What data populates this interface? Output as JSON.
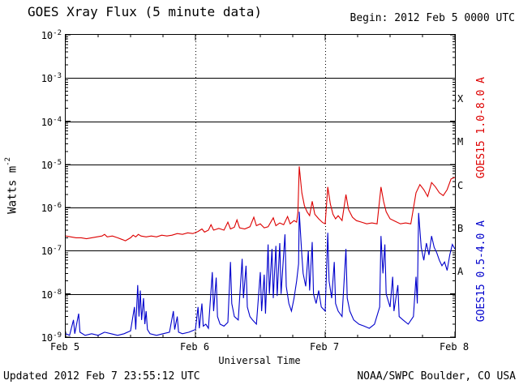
{
  "title": "GOES Xray Flux (5 minute data)",
  "begin_label": "Begin: 2012 Feb 5 0000 UTC",
  "footer": {
    "updated": "Updated 2012 Feb 7 23:55:12 UTC",
    "source": "NOAA/SWPC Boulder, CO USA"
  },
  "axes": {
    "ylabel_base": "Watts m",
    "ylabel_sup": "-2",
    "xlabel": "Universal Time",
    "x_tick_labels": [
      "Feb 5",
      "Feb 6",
      "Feb 7",
      "Feb 8"
    ],
    "y_tick_exponents": [
      -2,
      -3,
      -4,
      -5,
      -6,
      -7,
      -8,
      -9
    ],
    "flare_classes": [
      "X",
      "M",
      "C",
      "B",
      "A"
    ]
  },
  "right_labels": {
    "long": "GOES15 1.0-8.0 A",
    "short": "GOES15 0.5-4.0 A"
  },
  "colors": {
    "long": "#dd0000",
    "short": "#0000cc",
    "grid": "#000000",
    "background": "#ffffff"
  },
  "chart_data": {
    "type": "line",
    "title": "GOES Xray Flux (5 minute data)",
    "xlabel": "Universal Time",
    "ylabel": "Watts m^-2",
    "x_units": "days from 2012 Feb 5 0000 UTC",
    "xlim": [
      0,
      3
    ],
    "ylim_log10": [
      -9,
      -2
    ],
    "grid": "horizontal solid per decade, vertical dotted per day",
    "legend_position": "right-rotated",
    "series": [
      {
        "name": "GOES15 1.0-8.0 A",
        "color": "#dd0000",
        "points": [
          [
            0.0,
            2.2e-07
          ],
          [
            0.04,
            2.1e-07
          ],
          [
            0.08,
            2e-07
          ],
          [
            0.12,
            2e-07
          ],
          [
            0.16,
            1.9e-07
          ],
          [
            0.2,
            2e-07
          ],
          [
            0.24,
            2.1e-07
          ],
          [
            0.28,
            2.2e-07
          ],
          [
            0.3,
            2.4e-07
          ],
          [
            0.32,
            2.1e-07
          ],
          [
            0.36,
            2.2e-07
          ],
          [
            0.4,
            2e-07
          ],
          [
            0.44,
            1.8e-07
          ],
          [
            0.46,
            1.7e-07
          ],
          [
            0.5,
            2e-07
          ],
          [
            0.52,
            2.3e-07
          ],
          [
            0.54,
            2.1e-07
          ],
          [
            0.56,
            2.4e-07
          ],
          [
            0.58,
            2.2e-07
          ],
          [
            0.62,
            2.1e-07
          ],
          [
            0.66,
            2.2e-07
          ],
          [
            0.7,
            2.1e-07
          ],
          [
            0.74,
            2.3e-07
          ],
          [
            0.78,
            2.2e-07
          ],
          [
            0.82,
            2.3e-07
          ],
          [
            0.86,
            2.5e-07
          ],
          [
            0.9,
            2.4e-07
          ],
          [
            0.94,
            2.6e-07
          ],
          [
            0.98,
            2.5e-07
          ],
          [
            1.02,
            2.8e-07
          ],
          [
            1.05,
            3.2e-07
          ],
          [
            1.07,
            2.7e-07
          ],
          [
            1.1,
            3e-07
          ],
          [
            1.12,
            4e-07
          ],
          [
            1.14,
            3e-07
          ],
          [
            1.18,
            3.3e-07
          ],
          [
            1.22,
            3e-07
          ],
          [
            1.25,
            4.6e-07
          ],
          [
            1.27,
            3.2e-07
          ],
          [
            1.3,
            3.5e-07
          ],
          [
            1.32,
            5.2e-07
          ],
          [
            1.34,
            3.4e-07
          ],
          [
            1.38,
            3.2e-07
          ],
          [
            1.42,
            3.6e-07
          ],
          [
            1.45,
            6e-07
          ],
          [
            1.47,
            3.8e-07
          ],
          [
            1.5,
            4.2e-07
          ],
          [
            1.53,
            3.4e-07
          ],
          [
            1.56,
            3.6e-07
          ],
          [
            1.6,
            5.8e-07
          ],
          [
            1.62,
            3.8e-07
          ],
          [
            1.65,
            4.4e-07
          ],
          [
            1.68,
            4e-07
          ],
          [
            1.71,
            6.2e-07
          ],
          [
            1.73,
            4.2e-07
          ],
          [
            1.76,
            5e-07
          ],
          [
            1.78,
            4.6e-07
          ],
          [
            1.79,
            8e-07
          ],
          [
            1.8,
            9e-06
          ],
          [
            1.82,
            2.2e-06
          ],
          [
            1.84,
            1.1e-06
          ],
          [
            1.86,
            8e-07
          ],
          [
            1.88,
            6.5e-07
          ],
          [
            1.9,
            1.4e-06
          ],
          [
            1.92,
            7e-07
          ],
          [
            1.95,
            5.5e-07
          ],
          [
            1.98,
            4.5e-07
          ],
          [
            2.0,
            4.2e-07
          ],
          [
            2.02,
            3e-06
          ],
          [
            2.04,
            1.2e-06
          ],
          [
            2.06,
            7e-07
          ],
          [
            2.08,
            5.5e-07
          ],
          [
            2.1,
            6.5e-07
          ],
          [
            2.13,
            5e-07
          ],
          [
            2.16,
            2e-06
          ],
          [
            2.18,
            9e-07
          ],
          [
            2.21,
            6e-07
          ],
          [
            2.24,
            5e-07
          ],
          [
            2.28,
            4.6e-07
          ],
          [
            2.32,
            4.2e-07
          ],
          [
            2.36,
            4.4e-07
          ],
          [
            2.4,
            4.2e-07
          ],
          [
            2.43,
            3e-06
          ],
          [
            2.45,
            1.4e-06
          ],
          [
            2.47,
            8e-07
          ],
          [
            2.5,
            5.5e-07
          ],
          [
            2.54,
            4.8e-07
          ],
          [
            2.58,
            4.2e-07
          ],
          [
            2.62,
            4.4e-07
          ],
          [
            2.66,
            4.2e-07
          ],
          [
            2.7,
            2.2e-06
          ],
          [
            2.73,
            3.4e-06
          ],
          [
            2.76,
            2.6e-06
          ],
          [
            2.79,
            1.8e-06
          ],
          [
            2.82,
            3.8e-06
          ],
          [
            2.85,
            3e-06
          ],
          [
            2.88,
            2.2e-06
          ],
          [
            2.91,
            1.9e-06
          ],
          [
            2.94,
            2.6e-06
          ],
          [
            2.97,
            4.6e-06
          ],
          [
            3.0,
            5e-06
          ]
        ]
      },
      {
        "name": "GOES15 0.5-4.0 A",
        "color": "#0000cc",
        "points": [
          [
            0.0,
            1.2e-09
          ],
          [
            0.03,
            1.1e-09
          ],
          [
            0.06,
            2.5e-09
          ],
          [
            0.07,
            1.2e-09
          ],
          [
            0.1,
            3.5e-09
          ],
          [
            0.11,
            1.3e-09
          ],
          [
            0.15,
            1.1e-09
          ],
          [
            0.2,
            1.2e-09
          ],
          [
            0.25,
            1.1e-09
          ],
          [
            0.3,
            1.3e-09
          ],
          [
            0.35,
            1.2e-09
          ],
          [
            0.4,
            1.1e-09
          ],
          [
            0.45,
            1.2e-09
          ],
          [
            0.5,
            1.4e-09
          ],
          [
            0.53,
            5e-09
          ],
          [
            0.54,
            1.5e-09
          ],
          [
            0.555,
            1.6e-08
          ],
          [
            0.565,
            3e-09
          ],
          [
            0.575,
            1.2e-08
          ],
          [
            0.585,
            2.5e-09
          ],
          [
            0.6,
            8e-09
          ],
          [
            0.61,
            2e-09
          ],
          [
            0.62,
            4e-09
          ],
          [
            0.63,
            1.5e-09
          ],
          [
            0.65,
            1.2e-09
          ],
          [
            0.7,
            1.1e-09
          ],
          [
            0.75,
            1.2e-09
          ],
          [
            0.8,
            1.3e-09
          ],
          [
            0.83,
            4e-09
          ],
          [
            0.84,
            1.5e-09
          ],
          [
            0.86,
            3e-09
          ],
          [
            0.87,
            1.3e-09
          ],
          [
            0.9,
            1.2e-09
          ],
          [
            0.95,
            1.3e-09
          ],
          [
            1.0,
            1.5e-09
          ],
          [
            1.02,
            5e-09
          ],
          [
            1.03,
            1.6e-09
          ],
          [
            1.05,
            6e-09
          ],
          [
            1.06,
            1.8e-09
          ],
          [
            1.08,
            2e-09
          ],
          [
            1.1,
            1.6e-09
          ],
          [
            1.13,
            3.2e-08
          ],
          [
            1.14,
            4e-09
          ],
          [
            1.16,
            2.4e-08
          ],
          [
            1.17,
            3e-09
          ],
          [
            1.19,
            2e-09
          ],
          [
            1.22,
            1.8e-09
          ],
          [
            1.25,
            2.2e-09
          ],
          [
            1.27,
            5.5e-08
          ],
          [
            1.28,
            6e-09
          ],
          [
            1.3,
            3e-09
          ],
          [
            1.33,
            2.5e-09
          ],
          [
            1.36,
            6.5e-08
          ],
          [
            1.37,
            8e-09
          ],
          [
            1.39,
            4.5e-08
          ],
          [
            1.4,
            5e-09
          ],
          [
            1.42,
            3e-09
          ],
          [
            1.44,
            2.5e-09
          ],
          [
            1.47,
            2e-09
          ],
          [
            1.5,
            3.2e-08
          ],
          [
            1.51,
            4e-09
          ],
          [
            1.53,
            2.8e-08
          ],
          [
            1.54,
            3.5e-09
          ],
          [
            1.56,
            1.4e-07
          ],
          [
            1.57,
            1e-08
          ],
          [
            1.59,
            1.1e-07
          ],
          [
            1.6,
            8e-09
          ],
          [
            1.62,
            1.3e-07
          ],
          [
            1.63,
            9e-09
          ],
          [
            1.65,
            1.5e-07
          ],
          [
            1.66,
            1e-08
          ],
          [
            1.69,
            2.4e-07
          ],
          [
            1.7,
            1.5e-08
          ],
          [
            1.72,
            6e-09
          ],
          [
            1.74,
            4e-09
          ],
          [
            1.76,
            8e-09
          ],
          [
            1.78,
            2e-08
          ],
          [
            1.795,
            5e-08
          ],
          [
            1.8,
            8e-07
          ],
          [
            1.82,
            8e-08
          ],
          [
            1.83,
            3e-08
          ],
          [
            1.85,
            1.5e-08
          ],
          [
            1.87,
            1e-07
          ],
          [
            1.88,
            1.2e-08
          ],
          [
            1.9,
            1.6e-07
          ],
          [
            1.91,
            1e-08
          ],
          [
            1.93,
            6e-09
          ],
          [
            1.95,
            1.2e-08
          ],
          [
            1.97,
            5e-09
          ],
          [
            2.0,
            4e-09
          ],
          [
            2.02,
            2.6e-07
          ],
          [
            2.03,
            2e-08
          ],
          [
            2.05,
            8e-09
          ],
          [
            2.07,
            5.5e-08
          ],
          [
            2.08,
            6e-09
          ],
          [
            2.1,
            4e-09
          ],
          [
            2.13,
            3e-09
          ],
          [
            2.16,
            1.1e-07
          ],
          [
            2.17,
            8e-09
          ],
          [
            2.19,
            4e-09
          ],
          [
            2.22,
            2.5e-09
          ],
          [
            2.26,
            2e-09
          ],
          [
            2.3,
            1.8e-09
          ],
          [
            2.34,
            1.6e-09
          ],
          [
            2.38,
            2e-09
          ],
          [
            2.42,
            5e-09
          ],
          [
            2.43,
            2.2e-07
          ],
          [
            2.445,
            3e-08
          ],
          [
            2.46,
            1.4e-07
          ],
          [
            2.47,
            1e-08
          ],
          [
            2.5,
            5e-09
          ],
          [
            2.52,
            2.5e-08
          ],
          [
            2.53,
            4e-09
          ],
          [
            2.56,
            1.6e-08
          ],
          [
            2.57,
            3e-09
          ],
          [
            2.6,
            2.5e-09
          ],
          [
            2.64,
            2e-09
          ],
          [
            2.68,
            3e-09
          ],
          [
            2.7,
            2.5e-08
          ],
          [
            2.71,
            6e-09
          ],
          [
            2.72,
            7.5e-07
          ],
          [
            2.74,
            1.2e-07
          ],
          [
            2.76,
            6e-08
          ],
          [
            2.78,
            1.5e-07
          ],
          [
            2.8,
            8e-08
          ],
          [
            2.82,
            2.2e-07
          ],
          [
            2.84,
            1.2e-07
          ],
          [
            2.86,
            9e-08
          ],
          [
            2.88,
            6e-08
          ],
          [
            2.9,
            4.5e-08
          ],
          [
            2.92,
            5.5e-08
          ],
          [
            2.94,
            3.5e-08
          ],
          [
            2.96,
            8e-08
          ],
          [
            2.98,
            1.4e-07
          ],
          [
            3.0,
            1.1e-07
          ]
        ]
      }
    ]
  }
}
